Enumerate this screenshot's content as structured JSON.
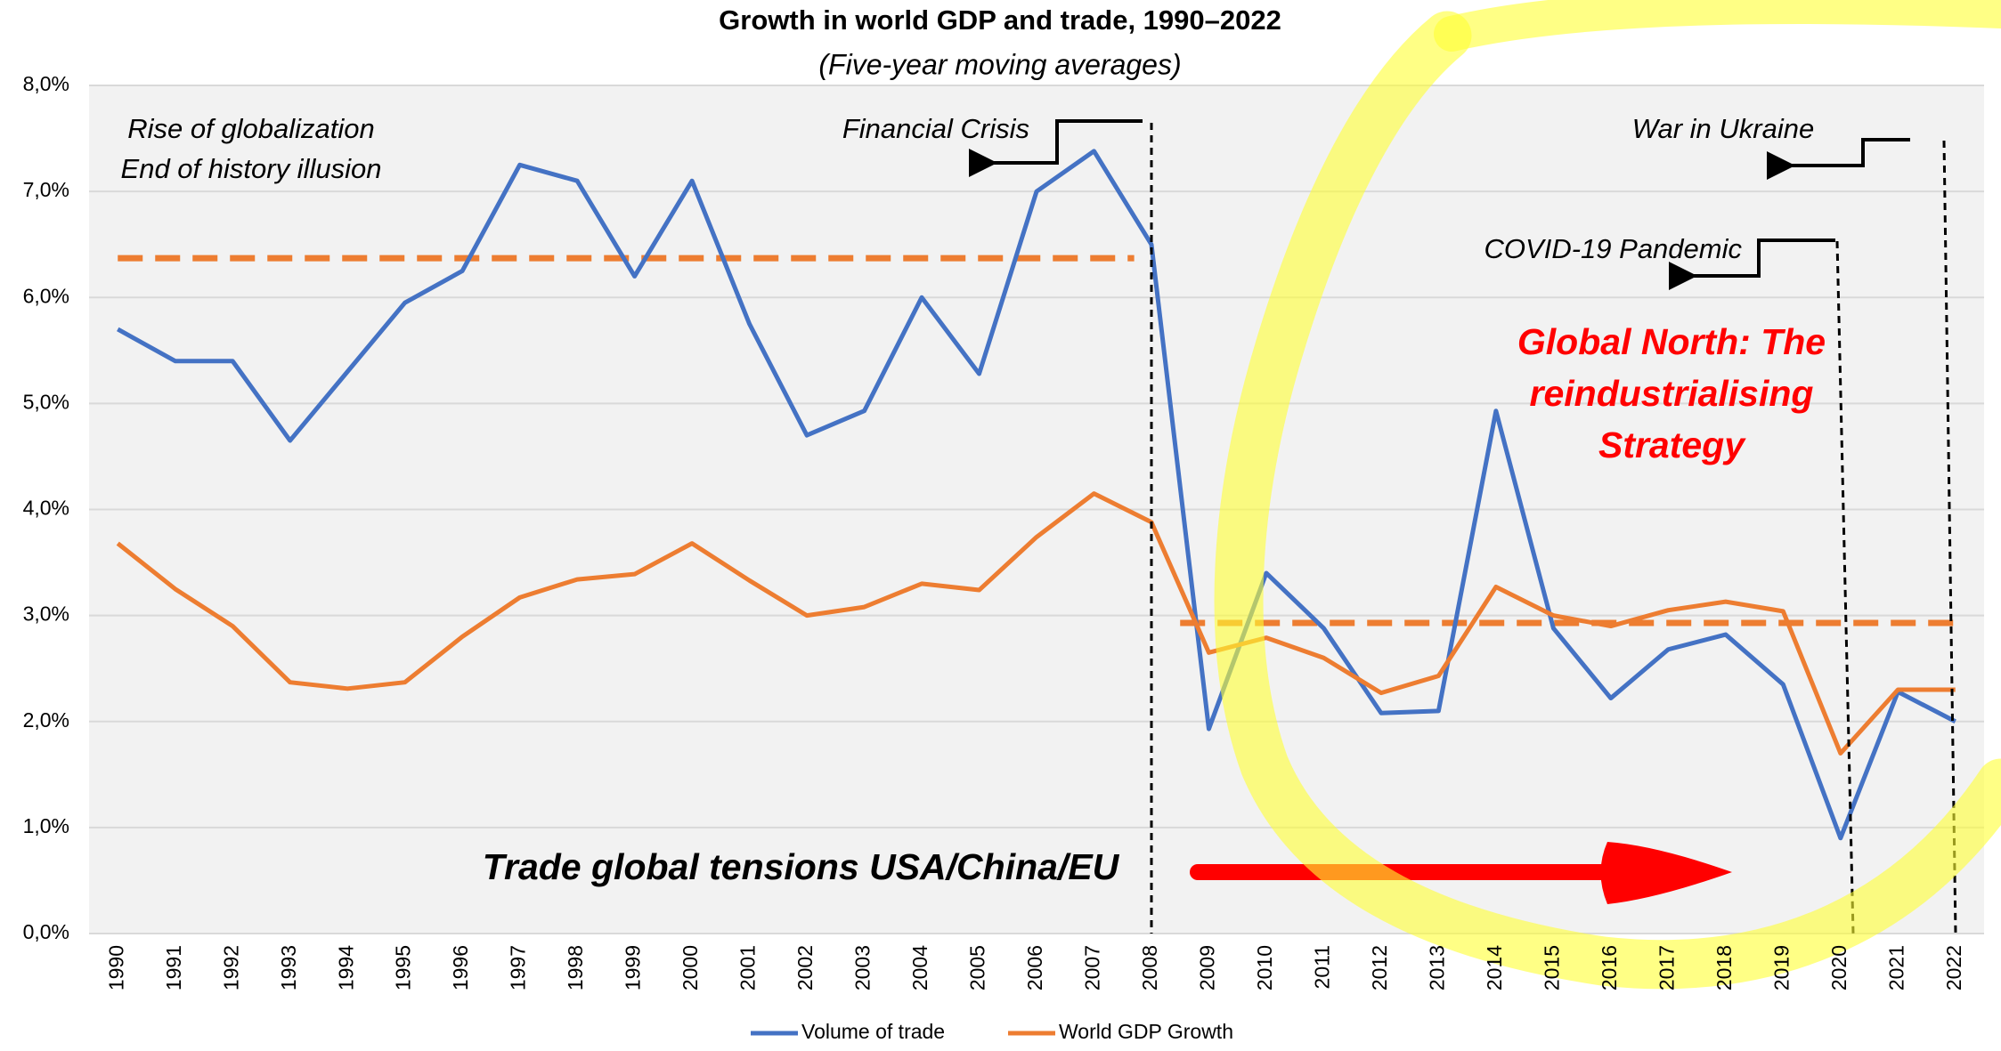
{
  "chart_data": {
    "type": "line",
    "title": "Growth in world GDP and trade, 1990–2022",
    "subtitle": "(Five-year moving averages)",
    "categories": [
      "1990",
      "1991",
      "1992",
      "1993",
      "1994",
      "1995",
      "1996",
      "1997",
      "1998",
      "1999",
      "2000",
      "2001",
      "2002",
      "2003",
      "2004",
      "2005",
      "2006",
      "2007",
      "2008",
      "2009",
      "2010",
      "2011",
      "2012",
      "2013",
      "2014",
      "2015",
      "2016",
      "2017",
      "2018",
      "2019",
      "2020",
      "2021",
      "2022"
    ],
    "series": [
      {
        "name": "Volume of trade",
        "color": "#4472c4",
        "values": [
          5.7,
          5.4,
          5.4,
          4.65,
          5.3,
          5.95,
          6.25,
          7.25,
          7.1,
          6.2,
          7.1,
          5.75,
          4.7,
          4.93,
          6.0,
          5.28,
          7.0,
          7.38,
          6.5,
          1.93,
          3.4,
          2.88,
          2.08,
          2.1,
          4.93,
          2.88,
          2.22,
          2.68,
          2.82,
          2.35,
          0.9,
          2.28,
          2.0
        ]
      },
      {
        "name": "World GDP Growth",
        "color": "#ed7d31",
        "values": [
          3.68,
          3.25,
          2.9,
          2.37,
          2.31,
          2.37,
          2.8,
          3.17,
          3.34,
          3.39,
          3.68,
          3.33,
          3.0,
          3.08,
          3.3,
          3.24,
          3.74,
          4.15,
          3.88,
          2.65,
          2.79,
          2.6,
          2.27,
          2.43,
          3.27,
          3.0,
          2.9,
          3.05,
          3.13,
          3.04,
          1.7,
          2.3,
          2.3
        ]
      }
    ],
    "reference_lines": [
      {
        "value": 6.37,
        "from": 1990,
        "to": 2007.7,
        "color": "#ed7d31"
      },
      {
        "value": 2.93,
        "from": 2008.5,
        "to": 2022,
        "color": "#ed7d31"
      }
    ],
    "ylim": [
      0,
      8
    ],
    "yticks": [
      {
        "value": 0,
        "label": "0,0%"
      },
      {
        "value": 1,
        "label": "1,0%"
      },
      {
        "value": 2,
        "label": "2,0%"
      },
      {
        "value": 3,
        "label": "3,0%"
      },
      {
        "value": 4,
        "label": "4,0%"
      },
      {
        "value": 5,
        "label": "5,0%"
      },
      {
        "value": 6,
        "label": "6,0%"
      },
      {
        "value": 7,
        "label": "7,0%"
      },
      {
        "value": 8,
        "label": "8,0%"
      }
    ],
    "grid": true,
    "legend": "bottom",
    "annotations": {
      "globalization": [
        "Rise of globalization",
        "End of history illusion"
      ],
      "financial_crisis": "Financial Crisis",
      "war": "War in Ukraine",
      "covid": "COVID-19 Pandemic",
      "global_north": [
        "Global North: The",
        "reindustrialising",
        "Strategy"
      ],
      "tensions": "Trade global tensions USA/China/EU"
    }
  }
}
